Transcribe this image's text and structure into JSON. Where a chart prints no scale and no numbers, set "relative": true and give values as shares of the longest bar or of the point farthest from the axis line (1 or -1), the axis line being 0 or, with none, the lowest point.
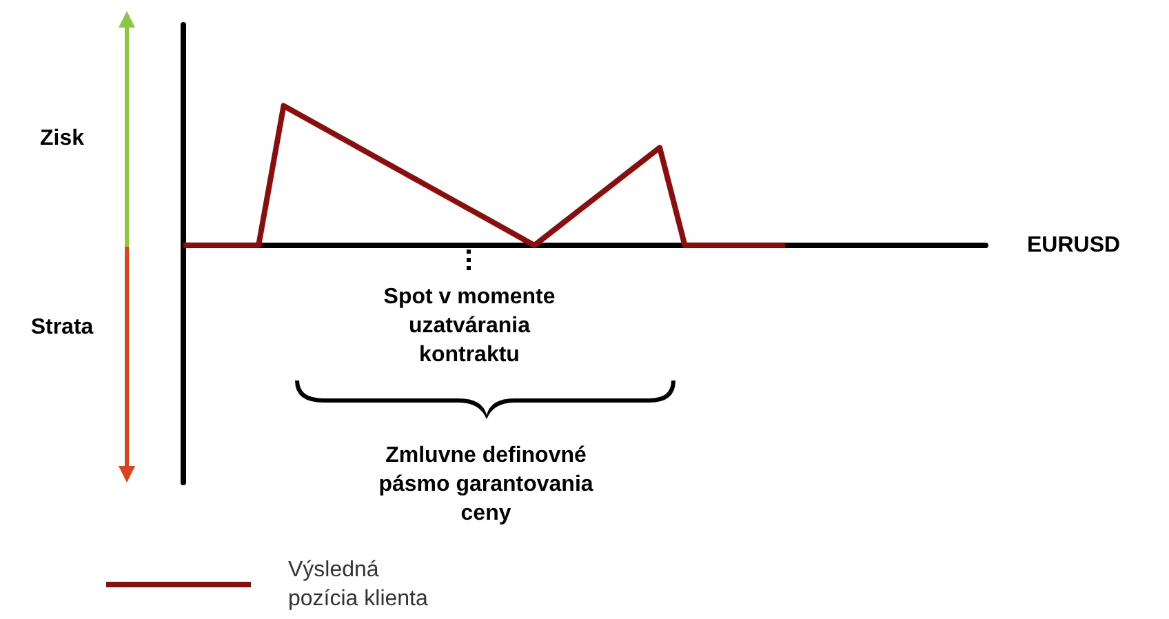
{
  "chart_data": {
    "type": "line",
    "relative": true,
    "xlabel": "EURUSD",
    "categories": [
      null,
      null,
      null,
      null,
      null,
      null,
      null,
      null,
      null,
      null,
      null,
      null,
      null,
      null,
      null,
      null,
      null,
      null,
      null,
      null,
      null,
      null,
      null,
      null,
      null,
      null,
      null,
      null,
      null,
      null,
      null,
      null,
      null
    ],
    "series": [
      {
        "name": "Výsledná pozícia klienta",
        "color": "#8b0e0e",
        "values": [
          0,
          0,
          0,
          0,
          1,
          0.9,
          0.8,
          0.7,
          0.6,
          0.5,
          0.4,
          0.3,
          0.2,
          0.1,
          0,
          0.14,
          0.28,
          0.42,
          0.56,
          0.7,
          0,
          0,
          0,
          0,
          0,
          null,
          null,
          null,
          null,
          null,
          null,
          null,
          null
        ]
      }
    ],
    "annotations": [
      "Zisk",
      "Strata",
      "Spot v momente uzatvárania kontraktu",
      "Zmluvne definovné pásmo garantovania ceny"
    ],
    "legend": "bottom left",
    "marker": "none",
    "line_style": "solid"
  }
}
